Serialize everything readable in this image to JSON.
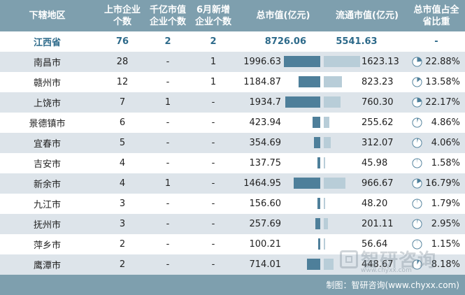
{
  "header": {
    "region": "下辖地区",
    "listed": "上市企业\n个数",
    "billion": "千亿市值\n企业个数",
    "june": "6月新增\n企业个数",
    "total": "总市值(亿元)",
    "float": "流通市值(亿元)",
    "share": "总市值占全\n省比重"
  },
  "summary": {
    "region": "江西省",
    "listed": "76",
    "billion": "2",
    "june": "2",
    "total": "8726.06",
    "float": "5541.63",
    "share": "-"
  },
  "chart_data": {
    "type": "table",
    "columns": [
      "下辖地区",
      "上市企业个数",
      "千亿市值企业个数",
      "6月新增企业个数",
      "总市值(亿元)",
      "流通市值(亿元)",
      "总市值占全省比重"
    ],
    "rows": [
      {
        "region": "南昌市",
        "listed": "28",
        "billion": "-",
        "june": "1",
        "total": 1996.63,
        "total_label": "1996.63",
        "float": 1623.13,
        "float_label": "1623.13",
        "share": 22.88,
        "share_label": "22.88%"
      },
      {
        "region": "赣州市",
        "listed": "12",
        "billion": "-",
        "june": "1",
        "total": 1184.87,
        "total_label": "1184.87",
        "float": 823.23,
        "float_label": "823.23",
        "share": 13.58,
        "share_label": "13.58%"
      },
      {
        "region": "上饶市",
        "listed": "7",
        "billion": "1",
        "june": "-",
        "total": 1934.7,
        "total_label": "1934.7",
        "float": 760.3,
        "float_label": "760.30",
        "share": 22.17,
        "share_label": "22.17%"
      },
      {
        "region": "景德镇市",
        "listed": "6",
        "billion": "-",
        "june": "-",
        "total": 423.94,
        "total_label": "423.94",
        "float": 255.62,
        "float_label": "255.62",
        "share": 4.86,
        "share_label": "4.86%"
      },
      {
        "region": "宜春市",
        "listed": "5",
        "billion": "-",
        "june": "-",
        "total": 354.69,
        "total_label": "354.69",
        "float": 312.07,
        "float_label": "312.07",
        "share": 4.06,
        "share_label": "4.06%"
      },
      {
        "region": "吉安市",
        "listed": "4",
        "billion": "-",
        "june": "-",
        "total": 137.75,
        "total_label": "137.75",
        "float": 45.98,
        "float_label": "45.98",
        "share": 1.58,
        "share_label": "1.58%"
      },
      {
        "region": "新余市",
        "listed": "4",
        "billion": "1",
        "june": "-",
        "total": 1464.95,
        "total_label": "1464.95",
        "float": 966.67,
        "float_label": "966.67",
        "share": 16.79,
        "share_label": "16.79%"
      },
      {
        "region": "九江市",
        "listed": "3",
        "billion": "-",
        "june": "-",
        "total": 156.6,
        "total_label": "156.60",
        "float": 48.2,
        "float_label": "48.20",
        "share": 1.79,
        "share_label": "1.79%"
      },
      {
        "region": "抚州市",
        "listed": "3",
        "billion": "-",
        "june": "-",
        "total": 257.69,
        "total_label": "257.69",
        "float": 201.11,
        "float_label": "201.11",
        "share": 2.95,
        "share_label": "2.95%"
      },
      {
        "region": "萍乡市",
        "listed": "2",
        "billion": "-",
        "june": "-",
        "total": 100.21,
        "total_label": "100.21",
        "float": 56.64,
        "float_label": "56.64",
        "share": 1.15,
        "share_label": "1.15%"
      },
      {
        "region": "鹰潭市",
        "listed": "2",
        "billion": "-",
        "june": "-",
        "total": 714.01,
        "total_label": "714.01",
        "float": 448.67,
        "float_label": "448.67",
        "share": 8.18,
        "share_label": "8.18%"
      }
    ]
  },
  "colors": {
    "header_bg": "#7e9fae",
    "total_bar": "#4e7f9a",
    "float_bar": "#b8cdd8",
    "summary_text": "#2d6a8a",
    "pie_fill": "#4e7f9a"
  },
  "footer": {
    "source": "制图：智研咨询(www.chyxx.com)"
  },
  "watermark": {
    "text": "智研咨询",
    "url": "www.chyxx.com"
  }
}
